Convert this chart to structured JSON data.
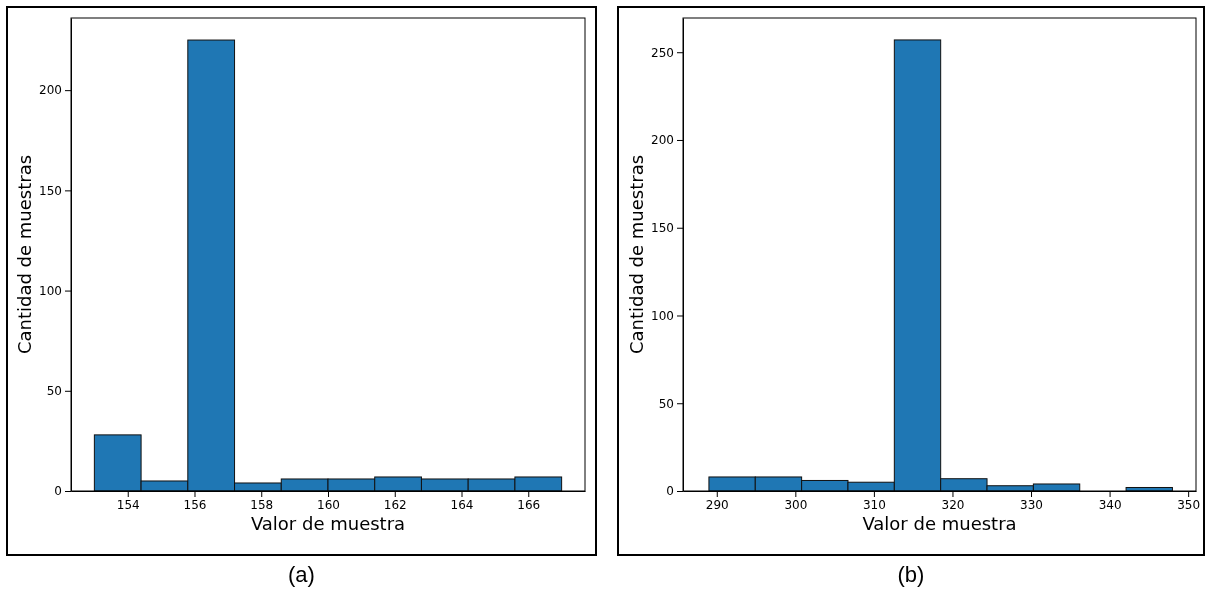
{
  "chart_data": [
    {
      "type": "histogram",
      "xlabel": "Valor de muestra",
      "ylabel": "Cantidad de muestras",
      "annotations": [
        "(a)"
      ],
      "color": "#1f77b4",
      "bins": [
        153,
        154.4,
        155.8,
        157.2,
        158.6,
        160,
        161.4,
        162.8,
        164.2,
        165.6,
        167
      ],
      "values": [
        28,
        5,
        225,
        4,
        6,
        6,
        7,
        6,
        6,
        7
      ],
      "xlim": [
        152.3,
        167.7
      ],
      "xticks": [
        154,
        156,
        158,
        160,
        162,
        164,
        166
      ],
      "ylim": [
        0,
        236
      ],
      "yticks": [
        0,
        50,
        100,
        150,
        200
      ],
      "grid": false
    },
    {
      "type": "histogram",
      "xlabel": "Valor de muestra",
      "ylabel": "Cantidad de muestras",
      "annotations": [
        "(b)"
      ],
      "color": "#1f77b4",
      "bins": [
        289,
        294.9,
        300.8,
        306.7,
        312.6,
        318.5,
        324.4,
        330.3,
        336.2,
        342.1,
        348
      ],
      "values": [
        8,
        8,
        6,
        5,
        257,
        7,
        3,
        4,
        0,
        2
      ],
      "xlim": [
        285.7,
        351
      ],
      "xticks": [
        290,
        300,
        310,
        320,
        330,
        340,
        350
      ],
      "ylim": [
        0,
        269.5
      ],
      "yticks": [
        0,
        50,
        100,
        150,
        200,
        250
      ],
      "grid": false
    }
  ]
}
